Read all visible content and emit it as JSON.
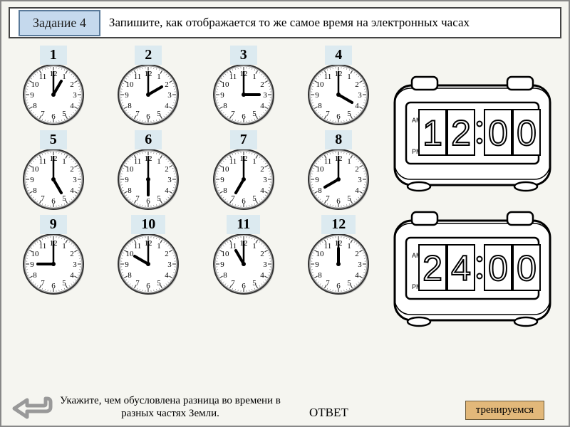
{
  "header": {
    "task_label": "Задание 4",
    "instruction": "Запишите, как отображается то же самое время на электронных часах"
  },
  "clocks": [
    {
      "num": "1",
      "hour": 1,
      "minute": 0
    },
    {
      "num": "2",
      "hour": 2,
      "minute": 0
    },
    {
      "num": "3",
      "hour": 3,
      "minute": 0
    },
    {
      "num": "4",
      "hour": 4,
      "minute": 0
    },
    {
      "num": "5",
      "hour": 5,
      "minute": 0
    },
    {
      "num": "6",
      "hour": 6,
      "minute": 0
    },
    {
      "num": "7",
      "hour": 7,
      "minute": 0
    },
    {
      "num": "8",
      "hour": 8,
      "minute": 0
    },
    {
      "num": "9",
      "hour": 9,
      "minute": 0
    },
    {
      "num": "10",
      "hour": 10,
      "minute": 0
    },
    {
      "num": "11",
      "hour": 11,
      "minute": 0
    },
    {
      "num": "12",
      "hour": 12,
      "minute": 0
    }
  ],
  "clock_style": {
    "face_fill": "#ffffff",
    "rim_outer": "#333333",
    "rim_inner": "#bbbbbb",
    "numeral_font_size": 11,
    "numeral_color": "#000000",
    "hand_color": "#000000",
    "hour_hand_len": 22,
    "minute_hand_len": 32,
    "shadow_color": "#888888"
  },
  "digital_clocks": [
    {
      "display": "12:00",
      "am_label": "AM",
      "pm_label": "PM"
    },
    {
      "display": "24:00",
      "am_label": "AM",
      "pm_label": "PM"
    }
  ],
  "digital_style": {
    "body_stroke": "#000000",
    "body_fill": "#ffffff",
    "digit_fontsize": 48,
    "digit_stroke": "#000000",
    "small_label_fontsize": 9
  },
  "footer": {
    "bottom_text": "Укажите, чем обусловлена разница во времени в разных частях Земли.",
    "answer_label": "ОТВЕТ",
    "train_label": "тренируемся"
  },
  "colors": {
    "page_bg": "#f5f5f0",
    "badge_bg": "#c5d9ed",
    "num_badge_bg": "#dceaf0",
    "train_bg": "#e2b87a",
    "arrow_color": "#999999"
  }
}
